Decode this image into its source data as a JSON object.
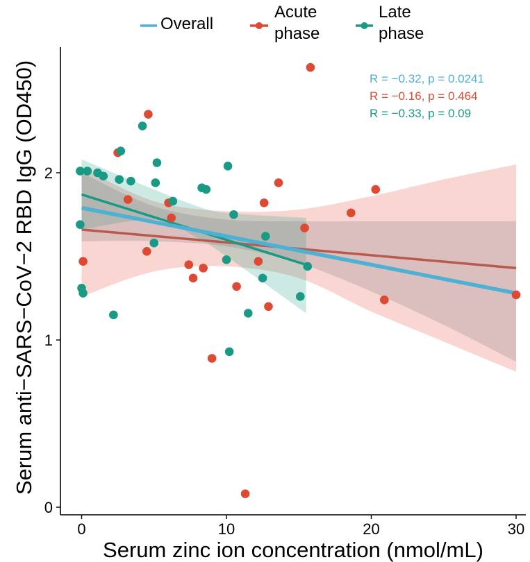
{
  "chart_data": {
    "type": "scatter",
    "xlabel": "Serum zinc ion concentration (nmol/mL)",
    "ylabel": "Serum anti−SARS−CoV−2 RBD IgG (OD450)",
    "xlim": [
      -1.5,
      31
    ],
    "ylim": [
      -0.05,
      2.75
    ],
    "x_ticks": [
      0,
      10,
      20,
      30
    ],
    "x_tick_labels": [
      "0",
      "10",
      "20",
      "30"
    ],
    "y_ticks": [
      0,
      1,
      2
    ],
    "y_tick_labels": [
      "0",
      "1",
      "2"
    ],
    "legend_position": "top",
    "legend": [
      {
        "label": "Overall",
        "color": "#4DB1D3",
        "marker": "line"
      },
      {
        "label": "Acute\nphase",
        "color": "#DC4A33",
        "marker": "line-point"
      },
      {
        "label": "Late\nphase",
        "color": "#1A9A85",
        "marker": "line-point"
      }
    ],
    "annotations": [
      {
        "text": "R = −0.32, p = 0.0241",
        "color": "#4DB1D3"
      },
      {
        "text": "R = −0.16, p = 0.464",
        "color": "#DC4A33"
      },
      {
        "text": "R = −0.33, p = 0.09",
        "color": "#1A9A85"
      }
    ],
    "series": [
      {
        "name": "Acute phase",
        "color": "#DC4A33",
        "points": [
          [
            0.1,
            1.47
          ],
          [
            2.5,
            2.12
          ],
          [
            3.2,
            1.84
          ],
          [
            4.5,
            1.53
          ],
          [
            4.6,
            2.35
          ],
          [
            6.0,
            1.82
          ],
          [
            6.2,
            1.73
          ],
          [
            7.4,
            1.45
          ],
          [
            7.7,
            1.37
          ],
          [
            8.4,
            1.43
          ],
          [
            9.0,
            0.89
          ],
          [
            10.7,
            1.32
          ],
          [
            11.3,
            0.08
          ],
          [
            12.2,
            1.47
          ],
          [
            12.6,
            1.82
          ],
          [
            12.9,
            1.2
          ],
          [
            13.6,
            1.94
          ],
          [
            15.4,
            1.67
          ],
          [
            15.8,
            2.63
          ],
          [
            18.6,
            1.76
          ],
          [
            20.3,
            1.9
          ],
          [
            20.9,
            1.24
          ],
          [
            30.0,
            1.27
          ]
        ],
        "fit": {
          "x": [
            0,
            30
          ],
          "y": [
            1.66,
            1.43
          ]
        },
        "ci_upper": [
          [
            0,
            2.03
          ],
          [
            5,
            1.83
          ],
          [
            10,
            1.77
          ],
          [
            15,
            1.78
          ],
          [
            20,
            1.86
          ],
          [
            25,
            1.96
          ],
          [
            30,
            2.05
          ]
        ],
        "ci_lower": [
          [
            0,
            1.26
          ],
          [
            5,
            1.41
          ],
          [
            10,
            1.44
          ],
          [
            15,
            1.37
          ],
          [
            20,
            1.17
          ],
          [
            25,
            0.99
          ],
          [
            30,
            0.81
          ]
        ]
      },
      {
        "name": "Late phase",
        "color": "#1A9A85",
        "points": [
          [
            -0.1,
            1.69
          ],
          [
            -0.1,
            2.01
          ],
          [
            0.0,
            1.31
          ],
          [
            0.1,
            1.28
          ],
          [
            0.4,
            2.01
          ],
          [
            1.1,
            2.0
          ],
          [
            1.5,
            1.98
          ],
          [
            2.2,
            1.15
          ],
          [
            2.6,
            1.96
          ],
          [
            2.7,
            2.13
          ],
          [
            3.4,
            1.95
          ],
          [
            4.2,
            2.28
          ],
          [
            5.0,
            1.58
          ],
          [
            5.1,
            1.94
          ],
          [
            5.2,
            2.06
          ],
          [
            6.3,
            1.83
          ],
          [
            8.3,
            1.91
          ],
          [
            8.6,
            1.9
          ],
          [
            10.0,
            1.48
          ],
          [
            10.1,
            2.04
          ],
          [
            10.2,
            0.93
          ],
          [
            10.5,
            1.75
          ],
          [
            11.5,
            1.16
          ],
          [
            12.5,
            1.37
          ],
          [
            12.7,
            1.62
          ],
          [
            15.1,
            1.26
          ],
          [
            15.6,
            1.44
          ]
        ],
        "fit": {
          "x": [
            0,
            15.5
          ],
          "y": [
            1.87,
            1.45
          ]
        },
        "ci_upper": [
          [
            0,
            2.08
          ],
          [
            5,
            1.9
          ],
          [
            8,
            1.8
          ],
          [
            10,
            1.76
          ],
          [
            15.5,
            1.73
          ]
        ],
        "ci_lower": [
          [
            0,
            1.66
          ],
          [
            5,
            1.72
          ],
          [
            8,
            1.61
          ],
          [
            10,
            1.5
          ],
          [
            15.5,
            1.16
          ]
        ]
      },
      {
        "name": "Overall",
        "color": "#4DB1D3",
        "points": [],
        "fit": {
          "x": [
            0,
            30
          ],
          "y": [
            1.79,
            1.28
          ]
        },
        "ci_upper": [
          [
            0,
            2.0
          ],
          [
            5,
            1.8
          ],
          [
            10,
            1.72
          ],
          [
            15,
            1.71
          ],
          [
            20,
            1.71
          ],
          [
            25,
            1.71
          ],
          [
            30,
            1.71
          ]
        ],
        "ci_lower": [
          [
            0,
            1.59
          ],
          [
            5,
            1.59
          ],
          [
            10,
            1.56
          ],
          [
            15,
            1.46
          ],
          [
            20,
            1.29
          ],
          [
            25,
            1.09
          ],
          [
            30,
            0.87
          ]
        ]
      }
    ]
  }
}
